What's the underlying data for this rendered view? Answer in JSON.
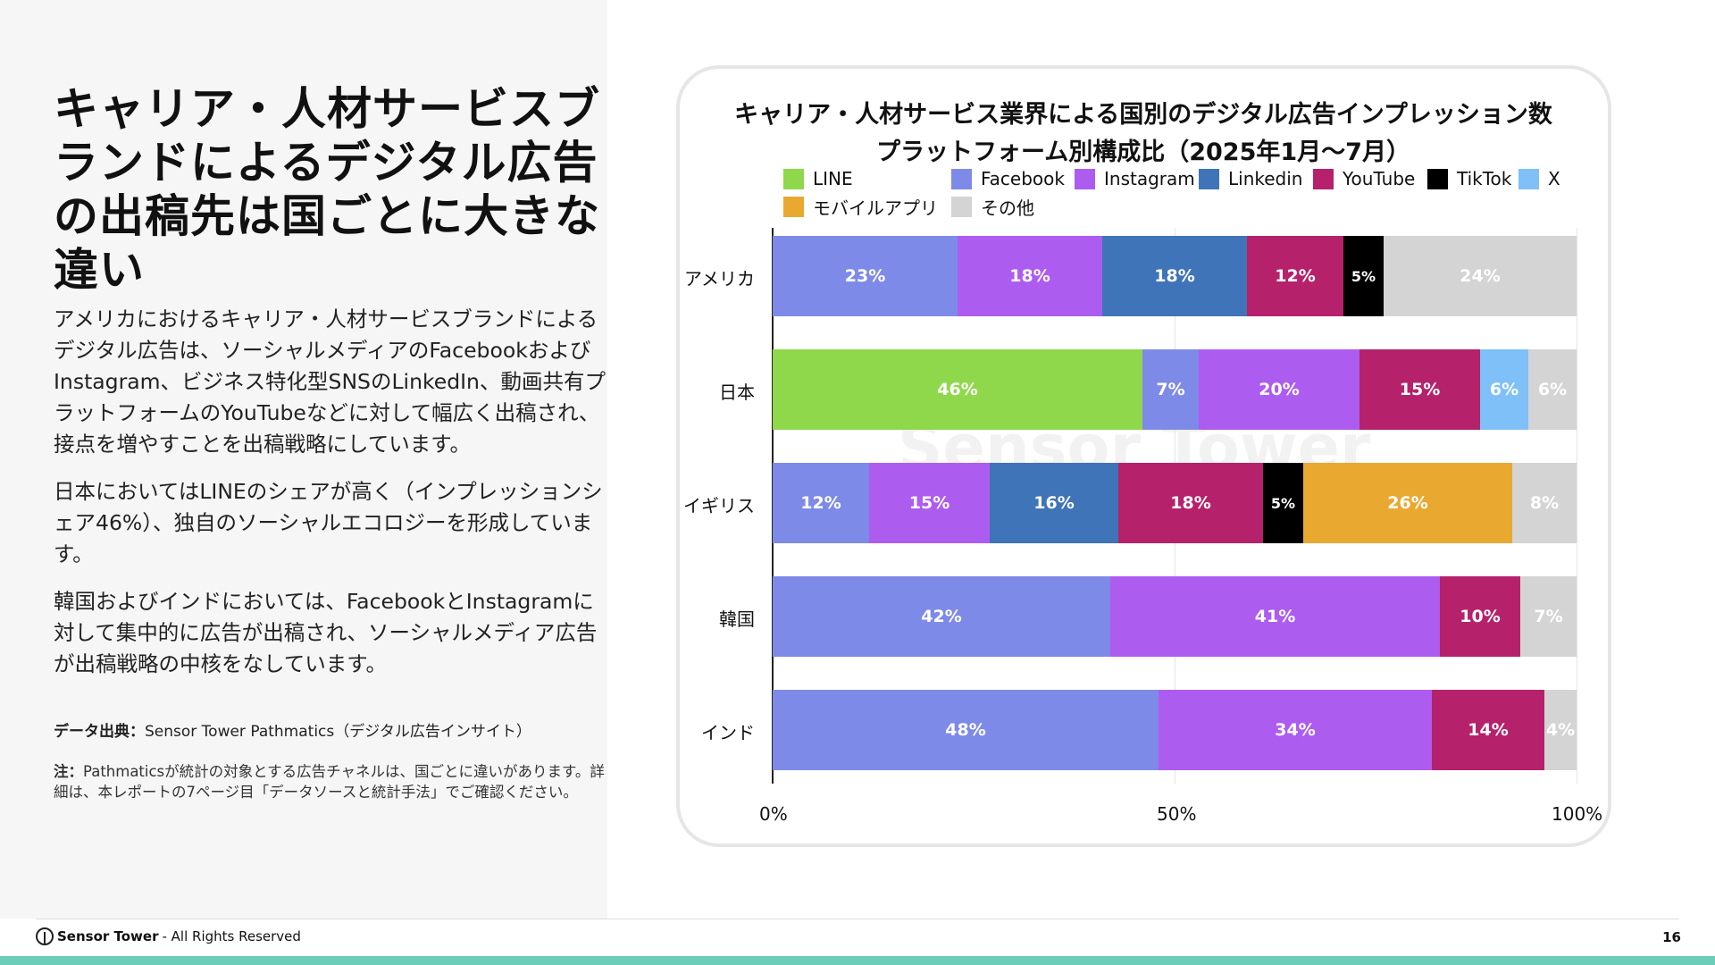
{
  "slide": {
    "headline": "キャリア・人材サービスブランドによるデジタル広告の出稿先は国ごとに大きな違い",
    "paragraphs": [
      "アメリカにおけるキャリア・人材サービスブランドによるデジタル広告は、ソーシャルメディアのFacebookおよびInstagram、ビジネス特化型SNSのLinkedIn、動画共有プラットフォームのYouTubeなどに対して幅広く出稿され、接点を増やすことを出稿戦略にしています。",
      "日本においてはLINEのシェアが高く（インプレッションシェア46%）、独自のソーシャルエコロジーを形成しています。",
      "韓国およびインドにおいては、FacebookとInstagramに対して集中的に広告が出稿され、ソーシャルメディア広告が出稿戦略の中核をなしています。"
    ],
    "source_label": "データ出典：",
    "source_text": "Sensor Tower Pathmatics（デジタル広告インサイト）",
    "note_label": "注：",
    "note_text": "Pathmaticsが統計の対象とする広告チャネルは、国ごとに違いがあります。詳細は、本レポートの7ページ目「データソースと統計手法」でご確認ください。"
  },
  "watermark": "Sensor Tower",
  "footer": {
    "brand": "Sensor Tower",
    "rights": " - All Rights Reserved",
    "page_number": "16"
  },
  "chart_data": {
    "type": "bar",
    "orientation": "horizontal",
    "stacked": true,
    "title_line1": "キャリア・人材サービス業界による国別のデジタル広告インプレッション数",
    "title_line2": "プラットフォーム別構成比（2025年1月〜7月）",
    "categories": [
      "アメリカ",
      "日本",
      "イギリス",
      "韓国",
      "インド"
    ],
    "x_ticks": [
      "0%",
      "50%",
      "100%"
    ],
    "xlim": [
      0,
      100
    ],
    "legend_position": "top",
    "series": [
      {
        "name": "LINE",
        "color": "#8fd84b",
        "values": [
          0,
          46,
          0,
          0,
          0
        ]
      },
      {
        "name": "Facebook",
        "color": "#7e8ae8",
        "values": [
          23,
          7,
          12,
          42,
          48
        ]
      },
      {
        "name": "Instagram",
        "color": "#ad5cf0",
        "values": [
          18,
          20,
          15,
          41,
          34
        ]
      },
      {
        "name": "Linkedin",
        "color": "#3f74b8",
        "values": [
          18,
          0,
          16,
          0,
          0
        ]
      },
      {
        "name": "YouTube",
        "color": "#b5226b",
        "values": [
          12,
          15,
          18,
          10,
          14
        ]
      },
      {
        "name": "TikTok",
        "color": "#000000",
        "values": [
          5,
          0,
          5,
          0,
          0
        ]
      },
      {
        "name": "X",
        "color": "#7ec0f7",
        "values": [
          0,
          6,
          0,
          0,
          0
        ]
      },
      {
        "name": "モバイルアプリ",
        "color": "#e9a930",
        "values": [
          0,
          0,
          26,
          0,
          0
        ]
      },
      {
        "name": "その他",
        "color": "#d4d4d4",
        "values": [
          24,
          6,
          8,
          7,
          4
        ]
      }
    ],
    "segment_labels": [
      [
        "",
        "23%",
        "18%",
        "18%",
        "12%",
        "5%",
        "",
        "",
        "24%"
      ],
      [
        "46%",
        "7%",
        "20%",
        "",
        "15%",
        "",
        "6%",
        "",
        "6%"
      ],
      [
        "",
        "12%",
        "15%",
        "16%",
        "18%",
        "5%",
        "",
        "26%",
        "8%"
      ],
      [
        "",
        "42%",
        "41%",
        "",
        "10%",
        "",
        "",
        "",
        "7%"
      ],
      [
        "",
        "48%",
        "34%",
        "",
        "14%",
        "",
        "",
        "",
        "4%"
      ]
    ]
  }
}
